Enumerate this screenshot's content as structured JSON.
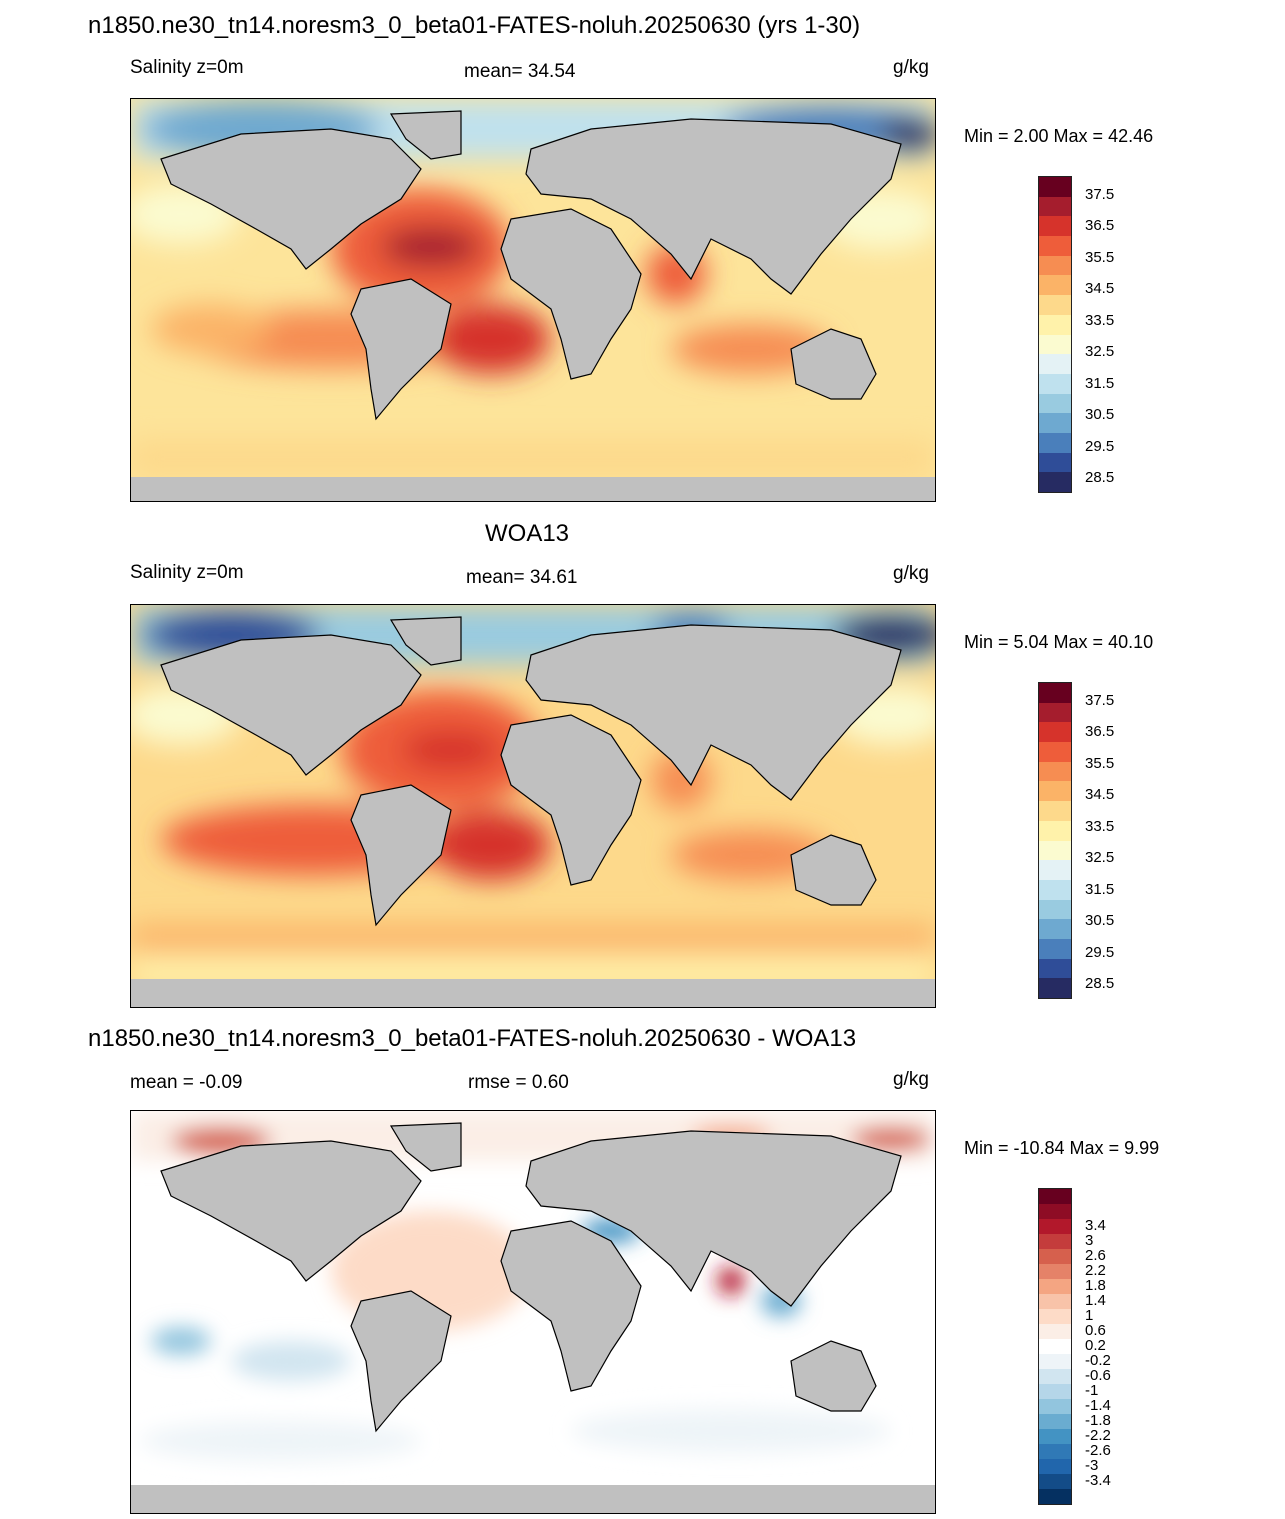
{
  "panels": [
    {
      "title": "n1850.ne30_tn14.noresm3_0_beta01-FATES-noluh.20250630 (yrs 1-30)",
      "left_label": "Salinity z=0m",
      "center_label": "mean=  34.54",
      "units": "g/kg",
      "minmax": "Min =   2.00 Max =  42.46",
      "colorbar": {
        "colors": [
          "#67001f",
          "#a51d2d",
          "#d6332b",
          "#ee5d3a",
          "#f68d52",
          "#fbb367",
          "#fdd98b",
          "#fff2aa",
          "#fbfbd0",
          "#e4f2f5",
          "#bfe1ee",
          "#99cbe0",
          "#6ea9d0",
          "#4a7fbb",
          "#2f4d98",
          "#262b62"
        ],
        "labels": [
          "37.5",
          "36.5",
          "35.5",
          "34.5",
          "33.5",
          "32.5",
          "31.5",
          "30.5",
          "29.5",
          "28.5"
        ]
      }
    },
    {
      "title": "WOA13",
      "left_label": "Salinity z=0m",
      "center_label": "mean=  34.61",
      "units": "g/kg",
      "minmax": "Min =   5.04 Max =  40.10",
      "colorbar": {
        "colors": [
          "#67001f",
          "#a51d2d",
          "#d6332b",
          "#ee5d3a",
          "#f68d52",
          "#fbb367",
          "#fdd98b",
          "#fff2aa",
          "#fbfbd0",
          "#e4f2f5",
          "#bfe1ee",
          "#99cbe0",
          "#6ea9d0",
          "#4a7fbb",
          "#2f4d98",
          "#262b62"
        ],
        "labels": [
          "37.5",
          "36.5",
          "35.5",
          "34.5",
          "33.5",
          "32.5",
          "31.5",
          "30.5",
          "29.5",
          "28.5"
        ]
      }
    },
    {
      "title": "n1850.ne30_tn14.noresm3_0_beta01-FATES-noluh.20250630 - WOA13",
      "left_label": "mean =  -0.09",
      "center_label": "rmse =   0.60",
      "units": "g/kg",
      "minmax": "Min = -10.84 Max =   9.99",
      "colorbar": {
        "colors": [
          "#67001f",
          "#8e0c25",
          "#b2182b",
          "#c43c3c",
          "#d6604d",
          "#e58268",
          "#f4a582",
          "#f8c3a9",
          "#fddbc7",
          "#fbeee6",
          "#ffffff",
          "#eef4f8",
          "#d1e5f0",
          "#b5d6e9",
          "#92c5de",
          "#6aacd0",
          "#4393c3",
          "#3079b6",
          "#2166ac",
          "#134c88",
          "#053061"
        ],
        "labels": [
          "3.4",
          "3",
          "2.6",
          "2.2",
          "1.8",
          "1.4",
          "1",
          "0.6",
          "0.2",
          "-0.2",
          "-0.6",
          "-1",
          "-1.4",
          "-1.8",
          "-2.2",
          "-2.6",
          "-3",
          "-3.4"
        ]
      }
    }
  ]
}
